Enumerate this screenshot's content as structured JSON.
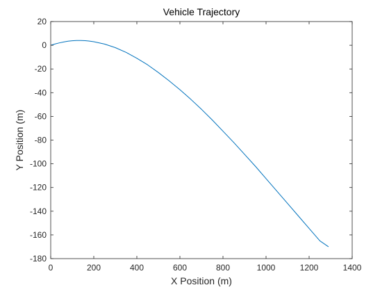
{
  "chart_data": {
    "type": "line",
    "title": "Vehicle Trajectory",
    "xlabel": "X Position (m)",
    "ylabel": "Y Position (m)",
    "xlim": [
      0,
      1400
    ],
    "ylim": [
      -180,
      20
    ],
    "xticks": [
      0,
      200,
      400,
      600,
      800,
      1000,
      1200,
      1400
    ],
    "yticks": [
      20,
      0,
      -20,
      -40,
      -60,
      -80,
      -100,
      -120,
      -140,
      -160,
      -180
    ],
    "grid": false,
    "legend": "none",
    "series": [
      {
        "color": "#0072BD",
        "x": [
          0,
          20,
          40,
          60,
          80,
          100,
          120,
          140,
          160,
          180,
          200,
          250,
          300,
          350,
          400,
          450,
          500,
          550,
          600,
          650,
          700,
          750,
          800,
          850,
          900,
          950,
          1000,
          1050,
          1100,
          1150,
          1200,
          1250,
          1290
        ],
        "y": [
          0,
          1.1,
          2.0,
          2.8,
          3.4,
          3.8,
          4.0,
          4.0,
          3.9,
          3.5,
          3.0,
          1.0,
          -2.0,
          -6.0,
          -11.0,
          -16.5,
          -23.0,
          -30.0,
          -37.5,
          -45.5,
          -54.0,
          -63.0,
          -72.5,
          -82.0,
          -92.0,
          -102.0,
          -112.5,
          -123.0,
          -133.5,
          -144.0,
          -154.5,
          -165.0,
          -170.0
        ]
      }
    ]
  }
}
